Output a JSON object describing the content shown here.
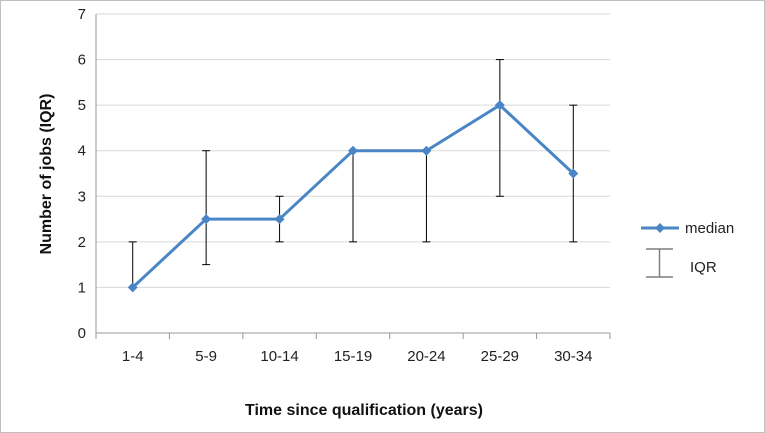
{
  "chart_data": {
    "type": "line",
    "categories": [
      "1-4",
      "5-9",
      "10-14",
      "15-19",
      "20-24",
      "25-29",
      "30-34"
    ],
    "series": [
      {
        "name": "median",
        "values": [
          1,
          2.5,
          2.5,
          4,
          4,
          5,
          3.5
        ],
        "error_low": [
          1,
          1.5,
          2,
          2,
          2,
          3,
          2
        ],
        "error_high": [
          2,
          4,
          3,
          4,
          4,
          6,
          5
        ],
        "color": "#4a86c5"
      }
    ],
    "error_legend": "IQR",
    "title": "",
    "xlabel": "Time since qualification (years)",
    "ylabel": "Number of jobs (IQR)",
    "ylim": [
      0,
      7
    ],
    "yticks": [
      0,
      1,
      2,
      3,
      4,
      5,
      6,
      7
    ],
    "grid": true,
    "legend_position": "right",
    "colors": {
      "line": "#4a86c5",
      "errorbar": "#000000",
      "grid": "#d9d9d9",
      "legend_bar": "#7f7f7f"
    }
  }
}
